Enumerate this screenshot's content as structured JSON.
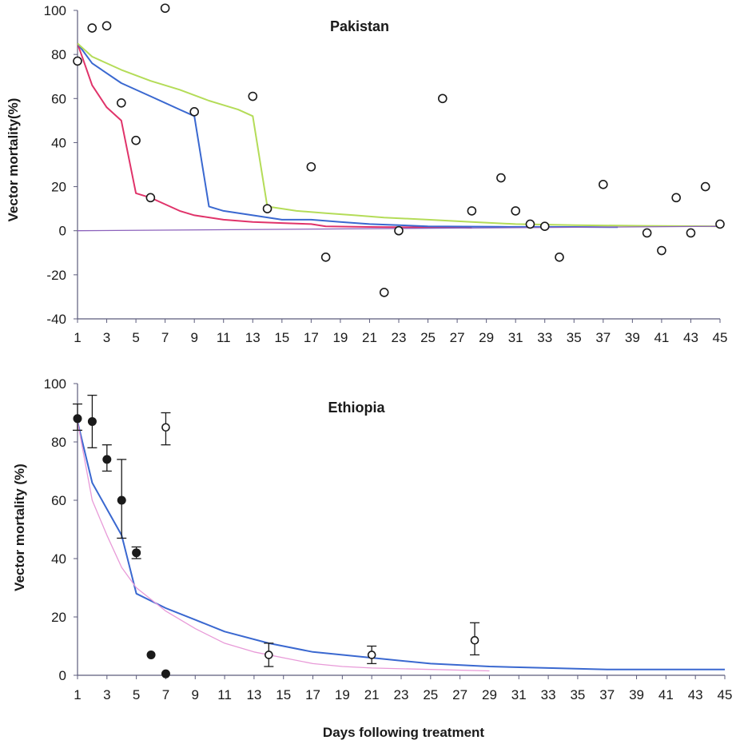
{
  "x_axis_title": "Days following treatment",
  "colors": {
    "red": "#e0336a",
    "blue": "#3a68d0",
    "green": "#b4dc58",
    "pink": "#e89ad8",
    "purple": "#8c62bc",
    "axis": "#5c5c7c",
    "marker": "#1a1a1a"
  },
  "chart_data": [
    {
      "id": "pakistan",
      "type": "scatter",
      "title": "Pakistan",
      "ylabel": "Vector mortality(%)",
      "xlabel": "",
      "xlim": [
        1,
        45
      ],
      "ylim": [
        -40,
        100
      ],
      "x_ticks": [
        1,
        3,
        5,
        7,
        9,
        11,
        13,
        15,
        17,
        19,
        21,
        23,
        25,
        27,
        29,
        31,
        33,
        35,
        37,
        39,
        41,
        43,
        45
      ],
      "y_ticks": [
        100,
        80,
        60,
        40,
        20,
        0,
        -20,
        -40
      ],
      "grid": false,
      "legend": "none",
      "points": [
        {
          "x": 1,
          "y": 77
        },
        {
          "x": 2,
          "y": 92
        },
        {
          "x": 3,
          "y": 93
        },
        {
          "x": 4,
          "y": 58
        },
        {
          "x": 5,
          "y": 41
        },
        {
          "x": 6,
          "y": 15
        },
        {
          "x": 7,
          "y": 101
        },
        {
          "x": 9,
          "y": 54
        },
        {
          "x": 13,
          "y": 61
        },
        {
          "x": 14,
          "y": 10
        },
        {
          "x": 17,
          "y": 29
        },
        {
          "x": 18,
          "y": -12
        },
        {
          "x": 22,
          "y": -28
        },
        {
          "x": 23,
          "y": 0
        },
        {
          "x": 26,
          "y": 60
        },
        {
          "x": 28,
          "y": 9
        },
        {
          "x": 30,
          "y": 24
        },
        {
          "x": 31,
          "y": 9
        },
        {
          "x": 32,
          "y": 3
        },
        {
          "x": 33,
          "y": 2
        },
        {
          "x": 34,
          "y": -12
        },
        {
          "x": 37,
          "y": 21
        },
        {
          "x": 40,
          "y": -1
        },
        {
          "x": 41,
          "y": -9
        },
        {
          "x": 42,
          "y": 15
        },
        {
          "x": 43,
          "y": -1
        },
        {
          "x": 44,
          "y": 20
        },
        {
          "x": 45,
          "y": 3
        }
      ],
      "lines": [
        {
          "color": "red",
          "points": [
            [
              1,
              85
            ],
            [
              2,
              66
            ],
            [
              3,
              56
            ],
            [
              4,
              50
            ],
            [
              5,
              17
            ],
            [
              6,
              15
            ],
            [
              7,
              12
            ],
            [
              8,
              9
            ],
            [
              9,
              7
            ],
            [
              11,
              5
            ],
            [
              13,
              4
            ],
            [
              15,
              3.5
            ],
            [
              17,
              3
            ],
            [
              18,
              2
            ],
            [
              21,
              1.7
            ],
            [
              25,
              1.5
            ],
            [
              28,
              1.3
            ]
          ]
        },
        {
          "color": "blue",
          "points": [
            [
              1,
              85
            ],
            [
              2,
              76
            ],
            [
              4,
              67
            ],
            [
              6,
              61
            ],
            [
              8,
              55
            ],
            [
              9,
              52
            ],
            [
              10,
              11
            ],
            [
              11,
              9
            ],
            [
              13,
              7
            ],
            [
              15,
              5
            ],
            [
              17,
              5
            ],
            [
              19,
              4
            ],
            [
              21,
              3
            ],
            [
              25,
              2
            ],
            [
              30,
              1.8
            ],
            [
              35,
              1.7
            ],
            [
              38,
              1.6
            ]
          ]
        },
        {
          "color": "green",
          "points": [
            [
              1,
              85
            ],
            [
              2,
              79
            ],
            [
              4,
              73
            ],
            [
              6,
              68
            ],
            [
              8,
              64
            ],
            [
              10,
              59
            ],
            [
              12,
              55
            ],
            [
              13,
              52
            ],
            [
              14,
              11
            ],
            [
              16,
              9
            ],
            [
              18,
              8
            ],
            [
              20,
              7
            ],
            [
              22,
              6
            ],
            [
              25,
              5
            ],
            [
              28,
              4
            ],
            [
              31,
              3
            ],
            [
              35,
              2.5
            ],
            [
              40,
              2.2
            ],
            [
              45,
              2
            ]
          ]
        },
        {
          "color": "purple",
          "points": [
            [
              1,
              0
            ],
            [
              45,
              2
            ]
          ]
        }
      ]
    },
    {
      "id": "ethiopia",
      "type": "scatter",
      "title": "Ethiopia",
      "ylabel": "Vector mortality (%)",
      "xlabel": "Days following treatment",
      "xlim": [
        1,
        45
      ],
      "ylim": [
        0,
        100
      ],
      "x_ticks": [
        1,
        3,
        5,
        7,
        9,
        11,
        13,
        15,
        17,
        19,
        21,
        23,
        25,
        27,
        29,
        31,
        33,
        35,
        37,
        39,
        41,
        43,
        45
      ],
      "y_ticks": [
        100,
        80,
        60,
        40,
        20,
        0
      ],
      "grid": false,
      "legend": "none",
      "filled_points": [
        {
          "x": 1,
          "y": 88,
          "err": [
            84,
            93
          ]
        },
        {
          "x": 2,
          "y": 87,
          "err": [
            78,
            96
          ]
        },
        {
          "x": 3,
          "y": 74,
          "err": [
            70,
            79
          ]
        },
        {
          "x": 4,
          "y": 60,
          "err": [
            47,
            74
          ]
        },
        {
          "x": 5,
          "y": 42,
          "err": [
            40,
            44
          ]
        },
        {
          "x": 6,
          "y": 7
        },
        {
          "x": 7,
          "y": 0.5
        }
      ],
      "open_points": [
        {
          "x": 7,
          "y": 85,
          "err": [
            79,
            90
          ]
        },
        {
          "x": 14,
          "y": 7,
          "err": [
            3,
            11
          ]
        },
        {
          "x": 21,
          "y": 7,
          "err": [
            4,
            10
          ]
        },
        {
          "x": 28,
          "y": 12,
          "err": [
            7,
            18
          ]
        }
      ],
      "lines": [
        {
          "color": "blue",
          "points": [
            [
              1,
              87
            ],
            [
              2,
              66
            ],
            [
              3,
              57
            ],
            [
              4,
              48
            ],
            [
              5,
              28
            ],
            [
              7,
              23
            ],
            [
              9,
              19
            ],
            [
              11,
              15
            ],
            [
              14,
              11
            ],
            [
              17,
              8
            ],
            [
              21,
              6
            ],
            [
              25,
              4
            ],
            [
              29,
              3
            ],
            [
              33,
              2.5
            ],
            [
              37,
              2
            ],
            [
              45,
              2
            ]
          ]
        },
        {
          "color": "pink",
          "points": [
            [
              1,
              87
            ],
            [
              2,
              60
            ],
            [
              3,
              48
            ],
            [
              4,
              37
            ],
            [
              5,
              30
            ],
            [
              7,
              22
            ],
            [
              9,
              16
            ],
            [
              11,
              11
            ],
            [
              13,
              8
            ],
            [
              15,
              6
            ],
            [
              17,
              4
            ],
            [
              19,
              3
            ],
            [
              21,
              2.5
            ],
            [
              25,
              2
            ],
            [
              29,
              1.5
            ]
          ]
        }
      ]
    }
  ]
}
